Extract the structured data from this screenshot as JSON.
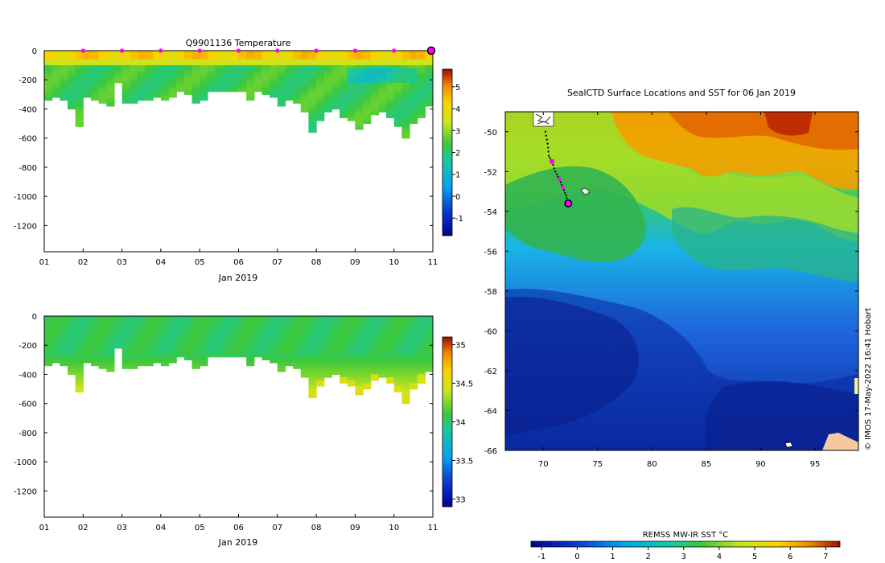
{
  "chart_data": [
    {
      "type": "heatmap",
      "title": "Q9901136  Temperature",
      "xlabel": "Jan 2019",
      "x_ticks": [
        "01",
        "02",
        "03",
        "04",
        "05",
        "06",
        "07",
        "08",
        "09",
        "10",
        "11"
      ],
      "y_ticks": [
        0,
        -200,
        -400,
        -600,
        -800,
        -1000,
        -1200
      ],
      "ylim": [
        -1380,
        0
      ],
      "colorbar_ticks": [
        5,
        4,
        3,
        2,
        1,
        0,
        -1
      ],
      "colorbar_range": [
        -1.8,
        5.8
      ],
      "profile_markers": [
        "02",
        "03",
        "04",
        "05",
        "06",
        "07",
        "08",
        "09",
        "10"
      ],
      "max_depth_profile": [
        340,
        320,
        330,
        400,
        520,
        310,
        330,
        360,
        370,
        210,
        360,
        350,
        340,
        330,
        320,
        340,
        310,
        280,
        300,
        350,
        330,
        280,
        280,
        280,
        280,
        280,
        330,
        280,
        300,
        320,
        380,
        330,
        350,
        420,
        550,
        480,
        420,
        390,
        460,
        480,
        530,
        500,
        440,
        410,
        460,
        520,
        590,
        500,
        450,
        380
      ]
    },
    {
      "type": "heatmap",
      "title": "",
      "xlabel": "Jan 2019",
      "x_ticks": [
        "01",
        "02",
        "03",
        "04",
        "05",
        "06",
        "07",
        "08",
        "09",
        "10",
        "11"
      ],
      "y_ticks": [
        0,
        -200,
        -400,
        -600,
        -800,
        -1000,
        -1200
      ],
      "ylim": [
        -1380,
        0
      ],
      "colorbar_ticks": [
        35,
        34.5,
        34,
        33.5,
        33
      ],
      "colorbar_range": [
        32.9,
        35.1
      ]
    },
    {
      "type": "heatmap",
      "title": "SealCTD Surface Locations and SST for 06 Jan 2019",
      "x_ticks": [
        70,
        75,
        80,
        85,
        90,
        95
      ],
      "y_ticks": [
        -50,
        -52,
        -54,
        -56,
        -58,
        -60,
        -62,
        -64,
        -66
      ],
      "xlim": [
        66.5,
        99
      ],
      "ylim": [
        -66,
        -49
      ],
      "colorbar_label": "REMSS MW-IR SST °C",
      "colorbar_ticks": [
        -1,
        0,
        1,
        2,
        3,
        4,
        5,
        6,
        7
      ],
      "colorbar_range": [
        -1.3,
        7.4
      ],
      "track": [
        [
          70.2,
          -50.0
        ],
        [
          70.4,
          -50.6
        ],
        [
          70.5,
          -51.2
        ],
        [
          70.8,
          -51.5
        ],
        [
          71.1,
          -52.0
        ],
        [
          71.5,
          -52.4
        ],
        [
          71.8,
          -52.8
        ],
        [
          72.1,
          -53.2
        ],
        [
          72.3,
          -53.6
        ]
      ]
    }
  ],
  "credit": "© IMOS 17-May-2022 16:41 Hobart"
}
